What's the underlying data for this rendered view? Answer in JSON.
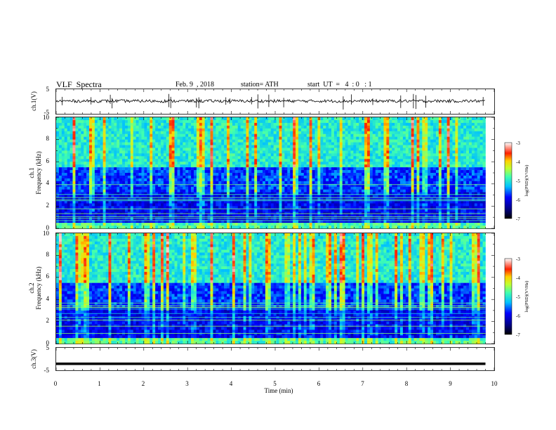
{
  "header": {
    "title": "VLF  Spectra",
    "date": "Feb. 9  , 2018",
    "station": "station= ATH",
    "start": "start  UT  =   4  : 0   : 1"
  },
  "chart_data": [
    {
      "type": "line",
      "panel": "ch1-waveform",
      "ylabel": "ch.1(V)",
      "y_ticks": [
        "5",
        "-5"
      ],
      "ylim": [
        -5,
        5
      ],
      "baseline": 0.2,
      "noise_amplitude": 0.6,
      "x_range_min": [
        0,
        9.8
      ]
    },
    {
      "type": "heatmap",
      "panel": "ch1-spectrogram",
      "ylabel_channel": "ch.1",
      "ylabel": "Frequency  (kHz)",
      "y_ticks": [
        "0",
        "2",
        "4",
        "6",
        "8",
        "10"
      ],
      "ylim": [
        0,
        10
      ],
      "colorbar": {
        "label": "log(PSD)(V²/Hz)",
        "ticks": [
          "-3",
          "-4",
          "-5",
          "-6",
          "-7"
        ],
        "range": [
          -7,
          -3
        ]
      }
    },
    {
      "type": "heatmap",
      "panel": "ch2-spectrogram",
      "ylabel_channel": "ch.2",
      "ylabel": "Frequency  (kHz)",
      "y_ticks": [
        "0",
        "2",
        "4",
        "6",
        "8",
        "10"
      ],
      "ylim": [
        0,
        10
      ],
      "colorbar": {
        "label": "log(PSD)(V²/Hz)",
        "ticks": [
          "-3",
          "-4",
          "-5",
          "-6",
          "-7"
        ],
        "range": [
          -7,
          -3
        ]
      }
    },
    {
      "type": "line",
      "panel": "ch3-waveform",
      "ylabel": "ch.3(V)",
      "y_ticks": [
        "5",
        "-5"
      ],
      "ylim": [
        -5,
        5
      ],
      "baseline": -2.2,
      "noise_amplitude": 0.05,
      "x_range_min": [
        0,
        9.8
      ]
    }
  ],
  "x_axis": {
    "label": "Time  (min)",
    "ticks": [
      "0",
      "1",
      "2",
      "3",
      "4",
      "5",
      "6",
      "7",
      "8",
      "9",
      "10"
    ],
    "range": [
      0,
      10
    ]
  }
}
